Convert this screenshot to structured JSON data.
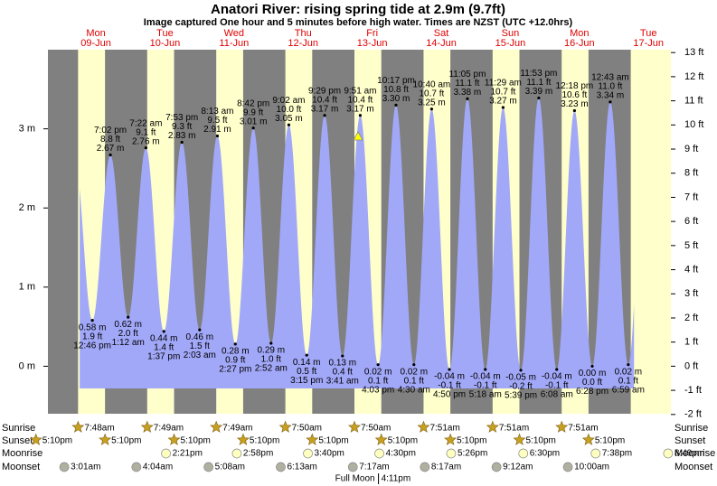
{
  "chart_data": {
    "type": "tide",
    "title": "Anatori River: rising  spring tide at 2.9m (9.7ft)",
    "subtitle": "Image captured One hour and 5 minutes before high water. Times are NZST (UTC +12.0hrs)",
    "days": [
      {
        "weekday": "Mon",
        "date": "09-Jun"
      },
      {
        "weekday": "Tue",
        "date": "10-Jun"
      },
      {
        "weekday": "Wed",
        "date": "11-Jun"
      },
      {
        "weekday": "Thu",
        "date": "12-Jun"
      },
      {
        "weekday": "Fri",
        "date": "13-Jun"
      },
      {
        "weekday": "Sat",
        "date": "14-Jun"
      },
      {
        "weekday": "Sun",
        "date": "15-Jun"
      },
      {
        "weekday": "Mon",
        "date": "16-Jun"
      },
      {
        "weekday": "Tue",
        "date": "17-Jun"
      }
    ],
    "extremes": {
      "times": [
        "12:46 pm",
        "7:02 pm",
        "1:12 am",
        "7:22 am",
        "1:37 pm",
        "7:53 pm",
        "2:03 am",
        "8:13 am",
        "2:27 pm",
        "8:42 pm",
        "2:52 am",
        "9:02 am",
        "3:15 pm",
        "9:29 pm",
        "3:41 am",
        "9:51 am",
        "4:03 pm",
        "10:17 pm",
        "4:30 am",
        "10:40 am",
        "4:50 pm",
        "11:05 pm",
        "5:18 am",
        "11:29 am",
        "5:39 pm",
        "11:53 pm",
        "6:08 am",
        "12:18 pm",
        "6:28 pm",
        "12:43 am",
        "6:59 am"
      ],
      "values": [
        0.58,
        2.67,
        0.62,
        2.76,
        0.44,
        2.83,
        0.46,
        2.91,
        0.28,
        3.01,
        0.29,
        3.05,
        0.14,
        3.17,
        0.13,
        3.17,
        0.02,
        3.3,
        0.02,
        3.25,
        -0.04,
        3.38,
        -0.04,
        3.27,
        -0.05,
        3.39,
        -0.04,
        3.23,
        0.0,
        3.34,
        0.02
      ],
      "value_labels": [
        "0.58 m",
        "2.67 m",
        "0.62 m",
        "2.76 m",
        "0.44 m",
        "2.83 m",
        "0.46 m",
        "2.91 m",
        "0.28 m",
        "3.01 m",
        "0.29 m",
        "3.05 m",
        "0.14 m",
        "3.17 m",
        "0.13 m",
        "3.17 m",
        "0.02 m",
        "3.30 m",
        "0.02 m",
        "3.25 m",
        "-0.04 m",
        "3.38 m",
        "-0.04 m",
        "3.27 m",
        "-0.05 m",
        "3.39 m",
        "-0.04 m",
        "3.23 m",
        "0.00 m",
        "3.34 m",
        "0.02 m"
      ],
      "ft_labels": [
        "1.9 ft",
        "8.8 ft",
        "2.0 ft",
        "9.1 ft",
        "1.4 ft",
        "9.3 ft",
        "1.5 ft",
        "9.5 ft",
        "0.9 ft",
        "9.9 ft",
        "1.0 ft",
        "10.0 ft",
        "0.5 ft",
        "10.4 ft",
        "0.4 ft",
        "10.4 ft",
        "0.1 ft",
        "10.8 ft",
        "0.1 ft",
        "10.7 ft",
        "-0.1 ft",
        "11.1 ft",
        "-0.1 ft",
        "10.7 ft",
        "-0.2 ft",
        "11.1 ft",
        "-0.1 ft",
        "10.6 ft",
        "0.0 ft",
        "11.0 ft",
        "0.1 ft"
      ]
    },
    "ylim": [
      -0.6,
      4.0
    ],
    "yticks": [
      {
        "value": 0,
        "label": "0 m"
      },
      {
        "value": 1,
        "label": "1 m"
      },
      {
        "value": 2,
        "label": "2 m"
      },
      {
        "value": 3,
        "label": "3 m"
      }
    ],
    "y2lim": [
      -1.97,
      13.12
    ],
    "y2ticks": [
      {
        "value": -2,
        "label": "-2 ft"
      },
      {
        "value": -1,
        "label": "-1 ft"
      },
      {
        "value": 0,
        "label": "0 ft"
      },
      {
        "value": 1,
        "label": "1 ft"
      },
      {
        "value": 2,
        "label": "2 ft"
      },
      {
        "value": 3,
        "label": "3 ft"
      },
      {
        "value": 4,
        "label": "4 ft"
      },
      {
        "value": 5,
        "label": "5 ft"
      },
      {
        "value": 6,
        "label": "6 ft"
      },
      {
        "value": 7,
        "label": "7 ft"
      },
      {
        "value": 8,
        "label": "8 ft"
      },
      {
        "value": 9,
        "label": "9 ft"
      },
      {
        "value": 10,
        "label": "10 ft"
      },
      {
        "value": 11,
        "label": "11 ft"
      },
      {
        "value": 12,
        "label": "12 ft"
      },
      {
        "value": 13,
        "label": "13 ft"
      }
    ],
    "rows": {
      "sunrise": {
        "label": "Sunrise",
        "times": [
          "7:48am",
          "7:49am",
          "7:49am",
          "7:50am",
          "7:50am",
          "7:51am",
          "7:51am",
          "7:51am"
        ]
      },
      "sunset": {
        "label": "Sunset",
        "times": [
          "5:10pm",
          "5:10pm",
          "5:10pm",
          "5:10pm",
          "5:10pm",
          "5:10pm",
          "5:10pm",
          "5:10pm",
          "5:10pm"
        ]
      },
      "moonrise": {
        "label": "Moonrise",
        "times": [
          "2:21pm",
          "2:58pm",
          "3:40pm",
          "4:30pm",
          "5:26pm",
          "6:30pm",
          "7:38pm",
          "8:49pm"
        ]
      },
      "moonset": {
        "label": "Moonset",
        "times": [
          "3:01am",
          "4:04am",
          "5:08am",
          "6:13am",
          "7:17am",
          "8:17am",
          "9:12am",
          "10:00am"
        ]
      }
    },
    "full_moon": {
      "label": "Full Moon",
      "time": "4:11pm"
    }
  }
}
